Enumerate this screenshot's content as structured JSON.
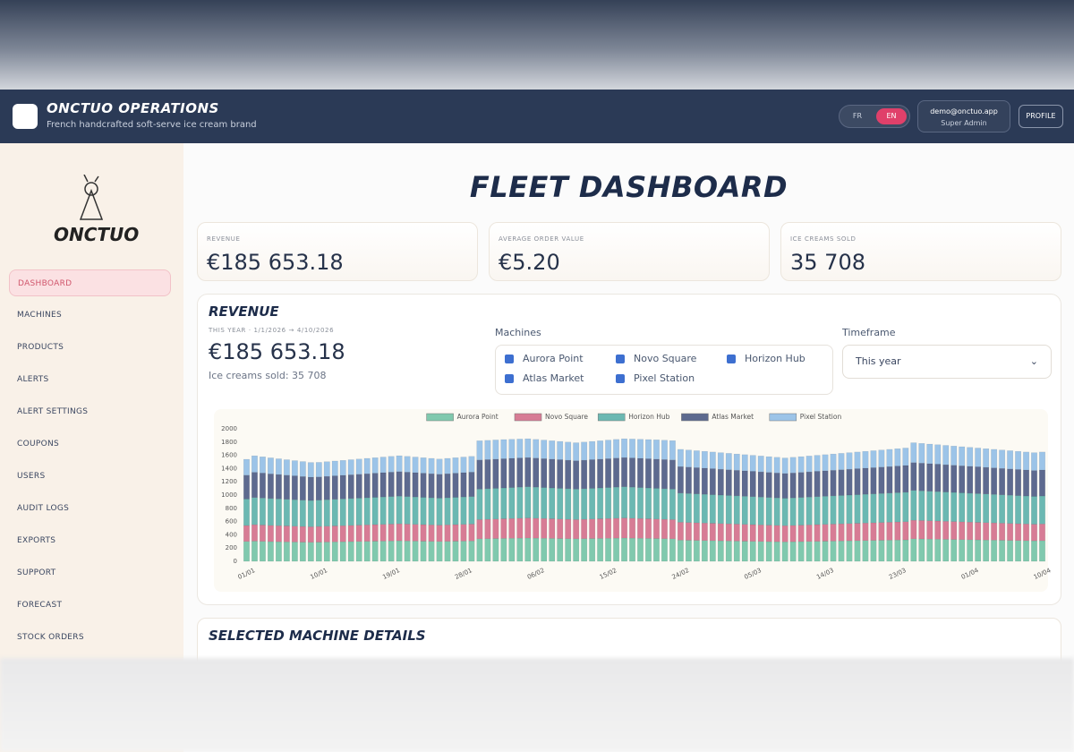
{
  "header": {
    "title": "ONCTUO OPERATIONS",
    "subtitle": "French handcrafted soft-serve ice cream brand",
    "languages": [
      "FR",
      "EN"
    ],
    "user_email": "demo@onctuo.app",
    "user_role": "Super Admin",
    "profile": "PROFILE"
  },
  "sidebar": {
    "logo": "ONCTUO",
    "nav": [
      "DASHBOARD",
      "MACHINES",
      "PRODUCTS",
      "ALERTS",
      "ALERT SETTINGS",
      "COUPONS",
      "USERS",
      "AUDIT LOGS",
      "EXPORTS",
      "SUPPORT",
      "FORECAST",
      "STOCK ORDERS"
    ]
  },
  "page_title": "FLEET DASHBOARD",
  "kpis": [
    {
      "label": "REVENUE",
      "value": "€185 653.18"
    },
    {
      "label": "AVERAGE ORDER VALUE",
      "value": "€5.20"
    },
    {
      "label": "ICE CREAMS SOLD",
      "value": "35 708"
    }
  ],
  "revenue_panel": {
    "title": "REVENUE",
    "period": "THIS YEAR · 1/1/2026 → 4/10/2026",
    "total": "€185 653.18",
    "sold": "Ice creams sold: 35 708",
    "machines_label": "Machines",
    "machines": [
      "Aurora Point",
      "Novo Square",
      "Horizon Hub",
      "Atlas Market",
      "Pixel Station"
    ],
    "timeframe_label": "Timeframe",
    "timeframe": "This year"
  },
  "details_title": "SELECTED MACHINE DETAILS",
  "chart_data": {
    "type": "bar",
    "stacked": true,
    "categories": [
      "01/01",
      null,
      null,
      null,
      null,
      null,
      null,
      null,
      null,
      "10/01",
      null,
      null,
      null,
      null,
      null,
      null,
      null,
      null,
      "19/01",
      null,
      null,
      null,
      null,
      null,
      null,
      null,
      null,
      "28/01",
      null,
      null,
      null,
      null,
      null,
      null,
      null,
      null,
      "06/02",
      null,
      null,
      null,
      null,
      null,
      null,
      null,
      null,
      "15/02",
      null,
      null,
      null,
      null,
      null,
      null,
      null,
      null,
      "24/02",
      null,
      null,
      null,
      null,
      null,
      null,
      null,
      null,
      "05/03",
      null,
      null,
      null,
      null,
      null,
      null,
      null,
      null,
      "14/03",
      null,
      null,
      null,
      null,
      null,
      null,
      null,
      null,
      "23/03",
      null,
      null,
      null,
      null,
      null,
      null,
      null,
      null,
      "01/04",
      null,
      null,
      null,
      null,
      null,
      null,
      null,
      null,
      "10/04"
    ],
    "series": [
      {
        "name": "Aurora Point",
        "color": "#80c9ae",
        "values": [
          300,
          305,
          302,
          298,
          296,
          294,
          292,
          290,
          288,
          290,
          292,
          294,
          296,
          298,
          300,
          302,
          304,
          306,
          308,
          310,
          308,
          306,
          304,
          302,
          300,
          302,
          304,
          306,
          308,
          340,
          342,
          344,
          346,
          348,
          350,
          352,
          350,
          348,
          346,
          344,
          342,
          340,
          342,
          344,
          346,
          348,
          350,
          352,
          350,
          348,
          346,
          344,
          342,
          340,
          320,
          318,
          316,
          314,
          312,
          310,
          308,
          306,
          304,
          302,
          300,
          298,
          296,
          294,
          296,
          298,
          300,
          302,
          304,
          306,
          308,
          310,
          312,
          314,
          316,
          318,
          320,
          322,
          324,
          340,
          338,
          336,
          334,
          332,
          330,
          328,
          326,
          324,
          322,
          320,
          318,
          316,
          314,
          312,
          310,
          312
        ]
      },
      {
        "name": "Novo Square",
        "color": "#d77c95",
        "values": [
          240,
          248,
          246,
          244,
          242,
          240,
          238,
          236,
          234,
          236,
          238,
          240,
          242,
          244,
          246,
          248,
          250,
          252,
          254,
          256,
          254,
          252,
          250,
          248,
          246,
          248,
          250,
          252,
          254,
          290,
          292,
          294,
          296,
          298,
          300,
          302,
          300,
          298,
          296,
          294,
          292,
          290,
          292,
          294,
          296,
          298,
          300,
          302,
          300,
          298,
          296,
          294,
          292,
          290,
          270,
          268,
          266,
          264,
          262,
          260,
          258,
          256,
          254,
          252,
          250,
          248,
          246,
          244,
          246,
          248,
          250,
          252,
          254,
          256,
          258,
          260,
          262,
          264,
          266,
          268,
          270,
          272,
          274,
          280,
          278,
          276,
          274,
          272,
          270,
          268,
          266,
          264,
          262,
          260,
          258,
          256,
          254,
          252,
          250,
          252
        ]
      },
      {
        "name": "Horizon Hub",
        "color": "#6bb8b2",
        "values": [
          400,
          410,
          408,
          406,
          404,
          402,
          400,
          398,
          396,
          398,
          400,
          402,
          404,
          406,
          408,
          410,
          412,
          414,
          416,
          418,
          416,
          414,
          412,
          410,
          408,
          410,
          412,
          414,
          416,
          460,
          462,
          464,
          466,
          468,
          470,
          472,
          470,
          468,
          466,
          464,
          462,
          460,
          462,
          464,
          466,
          468,
          470,
          472,
          470,
          468,
          466,
          464,
          462,
          460,
          440,
          438,
          436,
          434,
          432,
          430,
          428,
          426,
          424,
          422,
          420,
          418,
          416,
          414,
          416,
          418,
          420,
          422,
          424,
          426,
          428,
          430,
          432,
          434,
          436,
          438,
          440,
          442,
          444,
          450,
          448,
          446,
          444,
          442,
          440,
          438,
          436,
          434,
          432,
          430,
          428,
          426,
          424,
          422,
          420,
          422
        ]
      },
      {
        "name": "Atlas Market",
        "color": "#5d6a8f",
        "values": [
          360,
          380,
          376,
          372,
          368,
          364,
          360,
          356,
          352,
          350,
          352,
          354,
          356,
          358,
          360,
          362,
          364,
          366,
          368,
          370,
          368,
          366,
          364,
          362,
          360,
          362,
          364,
          366,
          368,
          440,
          440,
          440,
          440,
          440,
          440,
          440,
          438,
          436,
          434,
          432,
          430,
          428,
          430,
          432,
          434,
          436,
          438,
          440,
          440,
          440,
          440,
          440,
          440,
          440,
          400,
          398,
          396,
          394,
          392,
          390,
          388,
          386,
          384,
          382,
          380,
          378,
          376,
          374,
          376,
          378,
          380,
          382,
          384,
          386,
          388,
          390,
          392,
          394,
          396,
          398,
          400,
          402,
          404,
          420,
          418,
          416,
          414,
          412,
          410,
          408,
          406,
          404,
          402,
          400,
          398,
          396,
          394,
          392,
          390,
          392
        ]
      },
      {
        "name": "Pixel Station",
        "color": "#9cc4e8",
        "values": [
          240,
          250,
          246,
          242,
          238,
          234,
          230,
          226,
          222,
          220,
          222,
          224,
          226,
          228,
          230,
          232,
          234,
          236,
          238,
          240,
          238,
          236,
          234,
          232,
          230,
          232,
          234,
          236,
          238,
          290,
          290,
          290,
          290,
          288,
          286,
          284,
          282,
          280,
          278,
          276,
          274,
          272,
          274,
          276,
          278,
          280,
          282,
          284,
          286,
          288,
          290,
          292,
          292,
          292,
          260,
          258,
          256,
          254,
          252,
          250,
          248,
          246,
          244,
          242,
          240,
          238,
          236,
          234,
          236,
          238,
          240,
          242,
          244,
          246,
          248,
          250,
          252,
          254,
          256,
          258,
          260,
          262,
          264,
          300,
          298,
          296,
          294,
          292,
          290,
          288,
          286,
          284,
          282,
          280,
          278,
          276,
          274,
          272,
          270,
          272
        ]
      }
    ],
    "ylim": [
      0,
      2000
    ],
    "yticks": [
      0,
      200,
      400,
      600,
      800,
      1000,
      1200,
      1400,
      1600,
      1800,
      2000
    ]
  }
}
